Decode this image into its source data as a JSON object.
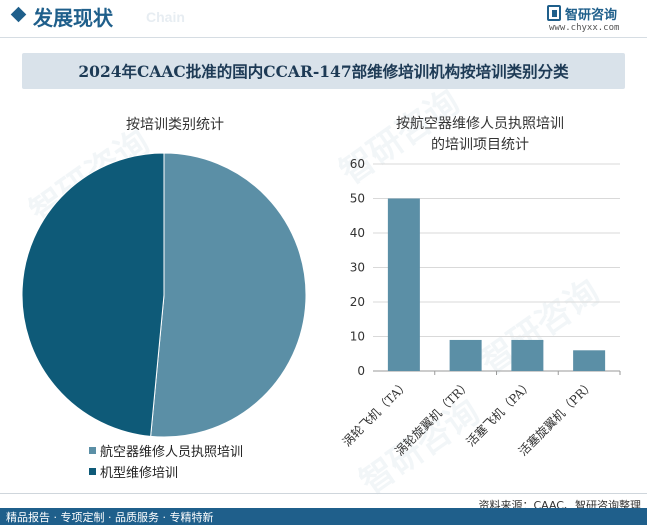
{
  "header": {
    "title": "发展现状",
    "subtitle_en": "Chain"
  },
  "logo": {
    "name": "智研咨询",
    "url": "www.chyxx.com"
  },
  "main_title": "2024年CAAC批准的国内CCAR-147部维修培训机构按培训类别分类",
  "watermark": "智研咨询",
  "chart_data": [
    {
      "type": "pie",
      "title": "按培训类别统计",
      "slices": [
        {
          "label": "航空器维修人员执照培训",
          "value": 51.5,
          "color": "#5b8fa6"
        },
        {
          "label": "机型维修培训",
          "value": 48.5,
          "color": "#0e5a78"
        }
      ],
      "legend_position": "bottom-left"
    },
    {
      "type": "bar",
      "title": "按航空器维修人员执照培训的培训项目统计",
      "title_lines": [
        "按航空器维修人员执照培训",
        "的培训项目统计"
      ],
      "categories": [
        "涡轮飞机（TA）",
        "涡轮旋翼机（TR）",
        "活塞飞机（PA）",
        "活塞旋翼机（PR）"
      ],
      "values": [
        50,
        9,
        9,
        6
      ],
      "ylim": [
        0,
        60
      ],
      "yticks": [
        0,
        10,
        20,
        30,
        40,
        50,
        60
      ],
      "color": "#5b8fa6",
      "grid": true
    }
  ],
  "source": "资料来源：CAAC、智研咨询整理",
  "footer": "精品报告 · 专项定制 · 品质服务 · 专精特新"
}
